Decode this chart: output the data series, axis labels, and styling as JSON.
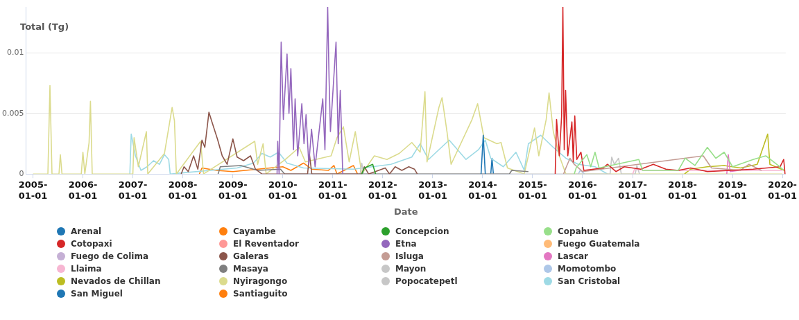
{
  "chart_data": {
    "type": "line",
    "ylabel": "Total (Tg)",
    "xlabel": "Date",
    "xlim": [
      "2004-11-11",
      "2020-01-25"
    ],
    "xticks": [
      "2005-01-01",
      "2006-01-01",
      "2007-01-01",
      "2008-01-01",
      "2009-01-01",
      "2010-01-01",
      "2011-01-01",
      "2012-01-01",
      "2013-01-01",
      "2014-01-01",
      "2015-01-01",
      "2016-01-01",
      "2017-01-01",
      "2018-01-01",
      "2019-01-01",
      "2020-01-01"
    ],
    "ylim": [
      0,
      0.0138
    ],
    "yticks": [
      0,
      0.005,
      0.01
    ],
    "grid": "y",
    "legend": "bottom",
    "marker": "none",
    "line_style": "solid",
    "series": [
      {
        "name": "Arenal",
        "color": "#1f77b4",
        "x": [
          "2013-12-20",
          "2014-01-05",
          "2014-01-20"
        ],
        "values": [
          0,
          0.0032,
          0
        ]
      },
      {
        "name": "Cayambe",
        "color": "#ff7f0e"
      },
      {
        "name": "Concepcion",
        "color": "#2ca02c",
        "x": [
          "2011-08-01",
          "2011-08-20",
          "2011-10-20",
          "2011-11-10"
        ],
        "values": [
          0,
          0.0005,
          0.0008,
          0
        ]
      },
      {
        "name": "Copahue",
        "color": "#98df8a",
        "x": [
          "2015-11-01",
          "2015-11-15",
          "2016-02-01",
          "2016-03-01",
          "2016-04-01",
          "2016-05-01",
          "2017-02-15",
          "2017-03-15",
          "2017-12-01",
          "2018-01-20",
          "2018-04-01",
          "2018-07-01",
          "2018-09-01",
          "2018-11-01",
          "2019-01-01",
          "2019-06-01",
          "2019-09-01",
          "2019-12-01",
          "2020-01-10"
        ],
        "values": [
          0,
          0.0005,
          0.0016,
          0.0006,
          0.0018,
          0.0005,
          0.0012,
          0.0003,
          0.0003,
          0.0013,
          0.0007,
          0.0022,
          0.0013,
          0.0018,
          0.0006,
          0.0012,
          0.0015,
          0.0007,
          0.0003
        ]
      },
      {
        "name": "Cotopaxi",
        "color": "#d62728",
        "x": [
          "2015-06-15",
          "2015-06-25",
          "2015-07-15",
          "2015-08-01",
          "2015-08-10",
          "2015-08-20",
          "2015-08-30",
          "2015-09-15",
          "2015-10-15",
          "2015-10-25",
          "2015-11-05",
          "2015-11-20",
          "2015-12-20",
          "2016-01-10",
          "2016-06-01",
          "2016-07-01",
          "2016-09-01",
          "2016-11-01",
          "2017-03-01",
          "2017-06-01",
          "2017-09-01",
          "2017-12-01",
          "2018-03-01",
          "2018-07-01",
          "2019-06-01",
          "2019-12-15",
          "2020-01-10",
          "2020-01-20"
        ],
        "values": [
          0,
          0.0045,
          0.0015,
          0.0048,
          0.0138,
          0.002,
          0.0069,
          0.0015,
          0.0043,
          0.001,
          0.0048,
          0.0012,
          0.0018,
          0.0003,
          0.0005,
          0.0008,
          0.0002,
          0.0006,
          0.0004,
          0.0008,
          0.0004,
          0.0003,
          0.0005,
          0.0002,
          0.0004,
          0.0006,
          0.0012,
          0
        ]
      },
      {
        "name": "El Reventador",
        "color": "#ff9896"
      },
      {
        "name": "Etna",
        "color": "#9467bd",
        "x": [
          "2009-11-20",
          "2009-11-25",
          "2009-12-05",
          "2009-12-20",
          "2010-01-05",
          "2010-02-01",
          "2010-02-15",
          "2010-03-01",
          "2010-03-20",
          "2010-04-01",
          "2010-04-20",
          "2010-05-20",
          "2010-06-05",
          "2010-06-20",
          "2010-07-10",
          "2010-07-30",
          "2010-08-25",
          "2010-10-20",
          "2010-11-05",
          "2010-11-25",
          "2010-12-05",
          "2010-12-15",
          "2011-01-25",
          "2011-02-10",
          "2011-02-25",
          "2011-03-15"
        ],
        "values": [
          0,
          0.0027,
          0,
          0.0109,
          0.0045,
          0.0099,
          0.005,
          0.0087,
          0.002,
          0.0062,
          0.0015,
          0.0058,
          0.0025,
          0.0049,
          0.0008,
          0.0037,
          0.0006,
          0.0062,
          0.002,
          0.0138,
          0.008,
          0.0035,
          0.0109,
          0.0025,
          0.0069,
          0
        ]
      },
      {
        "name": "Fuego Guatemala",
        "color": "#ffbb78"
      },
      {
        "name": "Fuego de Colima",
        "color": "#c5b0d5"
      },
      {
        "name": "Galeras",
        "color": "#8c564b",
        "x": [
          "2007-12-20",
          "2008-01-10",
          "2008-02-10",
          "2008-03-20",
          "2008-04-20",
          "2008-05-20",
          "2008-06-10",
          "2008-07-10",
          "2008-08-01",
          "2008-09-10",
          "2008-10-15",
          "2008-11-20",
          "2009-01-01",
          "2009-02-01",
          "2009-03-20",
          "2009-05-10",
          "2009-06-15",
          "2009-08-01",
          "2010-07-01",
          "2010-07-15",
          "2010-08-01",
          "2011-08-01",
          "2011-08-20",
          "2011-09-20",
          "2012-01-20",
          "2012-02-20",
          "2012-04-01",
          "2012-05-20",
          "2012-07-10",
          "2012-08-20",
          "2012-09-10"
        ],
        "values": [
          0,
          0.0006,
          0.0002,
          0.0015,
          0.0004,
          0.0028,
          0.0022,
          0.0051,
          0.0043,
          0.0029,
          0.0015,
          0.0008,
          0.0029,
          0.0014,
          0.0011,
          0.0015,
          0.0004,
          0,
          0,
          0.0016,
          0,
          0,
          0.0006,
          0,
          0.0005,
          0,
          0.0006,
          0.0003,
          0.0006,
          0.0004,
          0
        ]
      },
      {
        "name": "Isluga",
        "color": "#c49c94",
        "x": [
          "2015-08-15",
          "2015-09-01",
          "2015-10-01",
          "2015-11-01",
          "2016-01-01",
          "2018-06-01",
          "2018-08-01",
          "2019-03-01",
          "2019-05-01",
          "2019-08-01"
        ],
        "values": [
          0,
          0.0005,
          0.0013,
          0.0008,
          0.0002,
          0.0015,
          0.0005,
          0.0003,
          0.0008,
          0.0003
        ]
      },
      {
        "name": "Lascar",
        "color": "#e377c2",
        "x": [
          "2018-11-20",
          "2018-12-01",
          "2018-12-15",
          "2019-02-15"
        ],
        "values": [
          0,
          0.0016,
          0.0002,
          0.0003
        ]
      },
      {
        "name": "Llaima",
        "color": "#f7b6d2",
        "x": [
          "2017-01-01",
          "2017-01-15",
          "2017-04-01",
          "2020-01-01"
        ],
        "values": [
          0,
          0.0004,
          0.0003,
          0.0003
        ]
      },
      {
        "name": "Masaya",
        "color": "#7f7f7f",
        "x": [
          "2008-09-15",
          "2008-10-01",
          "2009-03-01",
          "2009-07-01",
          "2009-12-15",
          "2010-01-15",
          "2014-07-15",
          "2014-08-01",
          "2014-12-01"
        ],
        "values": [
          0,
          0.0006,
          0.0007,
          0.0003,
          0.0004,
          0,
          0,
          0.0003,
          0.0002
        ]
      },
      {
        "name": "Mayon",
        "color": "#c7c7c7",
        "x": [
          "2011-07-20",
          "2011-08-01",
          "2011-08-15",
          "2016-07-20",
          "2016-08-01",
          "2016-08-20",
          "2016-09-20",
          "2016-10-10",
          "2017-01-20",
          "2017-02-01",
          "2017-02-20"
        ],
        "values": [
          0,
          0.0009,
          0,
          0,
          0.0014,
          0.0008,
          0.0013,
          0,
          0,
          0.0007,
          0
        ]
      },
      {
        "name": "Momotombo",
        "color": "#aec7e8",
        "x": [
          "2015-12-01",
          "2015-12-15",
          "2016-01-15"
        ],
        "values": [
          0,
          0.0003,
          0
        ]
      },
      {
        "name": "Nevados de Chillan",
        "color": "#bcbd22",
        "x": [
          "2018-01-15",
          "2018-03-01",
          "2018-07-01",
          "2018-11-01",
          "2019-03-01",
          "2019-07-01",
          "2019-09-15",
          "2019-10-01",
          "2019-12-01",
          "2020-01-15"
        ],
        "values": [
          0,
          0.0004,
          0.0006,
          0.0007,
          0.0005,
          0.0008,
          0.0033,
          0.0008,
          0.0005,
          0.0003
        ]
      },
      {
        "name": "Nyiragongo",
        "color": "#dbdb8d",
        "x": [
          "2005-01-01",
          "2005-04-20",
          "2005-05-05",
          "2005-05-20",
          "2005-07-10",
          "2005-07-20",
          "2005-08-01",
          "2005-12-20",
          "2006-01-01",
          "2006-01-15",
          "2006-02-15",
          "2006-02-25",
          "2006-03-10",
          "2007-01-01",
          "2007-01-10",
          "2007-02-10",
          "2007-04-10",
          "2007-04-20",
          "2007-08-20",
          "2007-10-15",
          "2007-11-01",
          "2007-11-15",
          "2008-05-10",
          "2008-06-01",
          "2009-06-10",
          "2009-07-01",
          "2009-08-10",
          "2009-09-01",
          "2010-01-20",
          "2010-05-01",
          "2010-06-15",
          "2010-12-20",
          "2011-02-01",
          "2011-03-20",
          "2011-05-01",
          "2011-06-15",
          "2011-08-01",
          "2011-11-01",
          "2012-02-01",
          "2012-05-01",
          "2012-08-01",
          "2012-10-01",
          "2012-11-05",
          "2012-11-20",
          "2013-02-15",
          "2013-03-10",
          "2013-04-15",
          "2013-05-15",
          "2013-10-15",
          "2013-11-25",
          "2014-01-10",
          "2014-04-15",
          "2014-05-15",
          "2014-07-01",
          "2014-11-01",
          "2015-01-15",
          "2015-02-15",
          "2015-04-10",
          "2015-05-01",
          "2015-06-01",
          "2015-07-15",
          "2015-09-01",
          "2020-01-01"
        ],
        "values": [
          0,
          0,
          0.0073,
          0,
          0,
          0.0016,
          0,
          0,
          0.0018,
          0,
          0.0026,
          0.006,
          0,
          0,
          0.003,
          0.0006,
          0.0035,
          0,
          0.0017,
          0.0055,
          0.0044,
          0,
          0.0027,
          0,
          0.0027,
          0.0008,
          0.0025,
          0,
          0.0012,
          0.0022,
          0.001,
          0.0015,
          0.003,
          0.0039,
          0.001,
          0.0035,
          0,
          0.0015,
          0.0012,
          0.0017,
          0.0026,
          0.0018,
          0.0068,
          0.001,
          0.0055,
          0.0063,
          0.0035,
          0.0008,
          0.0045,
          0.0058,
          0.003,
          0.0025,
          0.0026,
          0.0005,
          0,
          0.0038,
          0.0015,
          0.0045,
          0.0067,
          0.0035,
          0.0015,
          0,
          0
        ]
      },
      {
        "name": "Popocatepetl",
        "color": "#c7c7c7"
      },
      {
        "name": "San Cristobal",
        "color": "#9edae5",
        "x": [
          "2006-12-10",
          "2006-12-20",
          "2007-01-20",
          "2007-03-01",
          "2007-04-15",
          "2007-06-01",
          "2007-07-15",
          "2007-08-20",
          "2007-09-20",
          "2007-10-01",
          "2009-02-01",
          "2009-06-01",
          "2009-08-01",
          "2009-10-01",
          "2009-12-01",
          "2010-02-01",
          "2010-06-01",
          "2011-06-01",
          "2012-03-01",
          "2012-08-01",
          "2012-10-01",
          "2012-12-01",
          "2013-05-01",
          "2013-09-01",
          "2013-12-01",
          "2014-01-20",
          "2014-03-01",
          "2014-06-01",
          "2014-09-01",
          "2014-11-01",
          "2014-12-01",
          "2015-03-01",
          "2015-06-01",
          "2015-09-01",
          "2015-12-01",
          "2016-04-01",
          "2016-06-01",
          "2016-07-01"
        ],
        "values": [
          0,
          0.0033,
          0.0015,
          0.0003,
          0.0006,
          0.0011,
          0.0008,
          0.0016,
          0.0012,
          0,
          0.0005,
          0.0009,
          0.0017,
          0.0014,
          0.0018,
          0.0009,
          0.0005,
          0.0004,
          0.0008,
          0.0014,
          0.0025,
          0.0012,
          0.0028,
          0.0012,
          0.002,
          0.0028,
          0.0013,
          0.0006,
          0.0018,
          0.0003,
          0.0025,
          0.0032,
          0.0022,
          0.0013,
          0.0008,
          0.0006,
          0.0002,
          0
        ]
      },
      {
        "name": "San Miguel",
        "color": "#1f77b4",
        "x": [
          "2014-03-01",
          "2014-03-10",
          "2014-03-20"
        ],
        "values": [
          0,
          0.0013,
          0
        ]
      },
      {
        "name": "Santiaguito",
        "color": "#ff7f0e",
        "x": [
          "2008-05-01",
          "2008-05-20",
          "2008-09-01",
          "2009-01-01",
          "2009-07-01",
          "2010-01-01",
          "2010-03-01",
          "2010-06-01",
          "2010-08-01",
          "2010-12-01",
          "2011-01-10",
          "2011-02-01",
          "2011-06-01",
          "2011-07-01"
        ],
        "values": [
          0,
          0.0005,
          0.0003,
          0.0002,
          0.0004,
          0.0006,
          0.0003,
          0.0009,
          0.0004,
          0.0003,
          0.0007,
          0,
          0.0007,
          0
        ]
      }
    ]
  }
}
